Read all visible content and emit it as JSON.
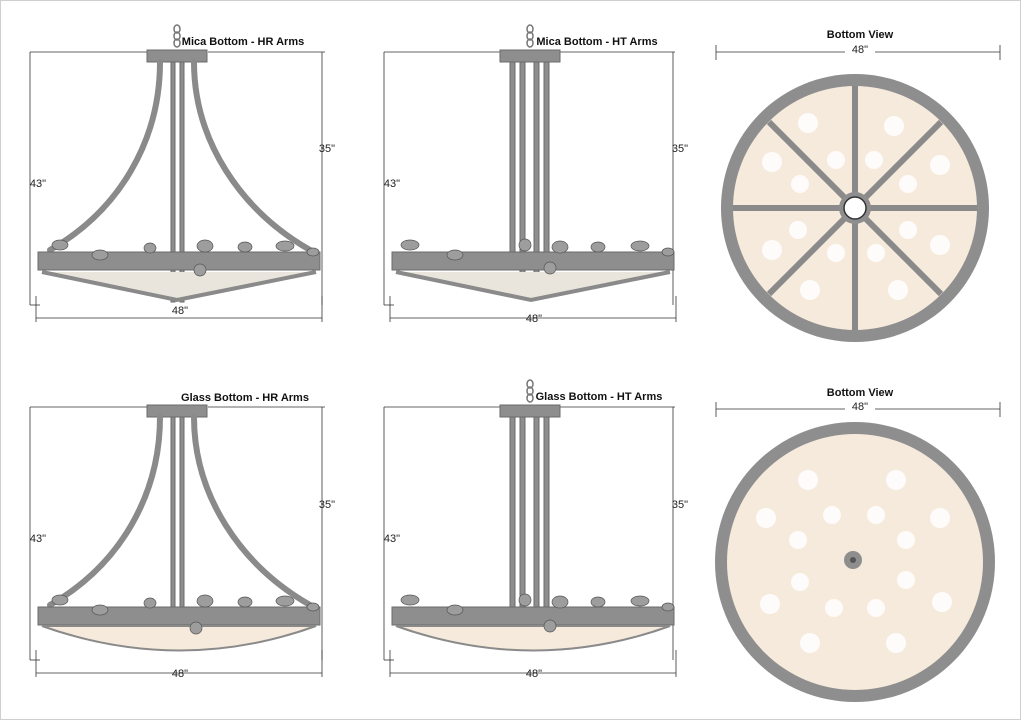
{
  "panels": [
    {
      "title": "Mica Bottom - HR Arms",
      "height_total": "43\"",
      "height_body": "35\"",
      "width": "48\""
    },
    {
      "title": "Mica Bottom - HT Arms",
      "height_total": "43\"",
      "height_body": "35\"",
      "width": "48\""
    },
    {
      "title": "Bottom View",
      "width": "48\""
    },
    {
      "title": "Glass Bottom - HR Arms",
      "height_total": "43\"",
      "height_body": "35\"",
      "width": "48\""
    },
    {
      "title": "Glass Bottom - HT Arms",
      "height_total": "43\"",
      "height_body": "35\"",
      "width": "48\""
    },
    {
      "title": "Bottom View",
      "width": "48\""
    }
  ],
  "colors": {
    "metal": "#8e8e8e",
    "shade": "#f5eadb",
    "dimension_line": "#333333"
  }
}
